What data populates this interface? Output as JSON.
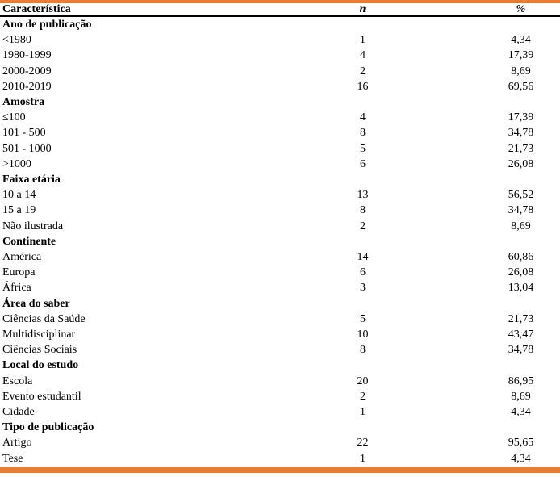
{
  "colors": {
    "accent": "#E87E35",
    "text": "#000000",
    "header_rule": "#000000"
  },
  "table": {
    "columns": [
      "Característica",
      "n",
      "%"
    ],
    "sections": [
      {
        "label": "Ano de publicação",
        "rows": [
          {
            "label": "<1980",
            "n": "1",
            "pct": "4,34"
          },
          {
            "label": "1980-1999",
            "n": "4",
            "pct": "17,39"
          },
          {
            "label": "2000-2009",
            "n": "2",
            "pct": "8,69"
          },
          {
            "label": "2010-2019",
            "n": "16",
            "pct": "69,56"
          }
        ]
      },
      {
        "label": "Amostra",
        "rows": [
          {
            "label": "≤100",
            "n": "4",
            "pct": "17,39"
          },
          {
            "label": "101 - 500",
            "n": "8",
            "pct": "34,78"
          },
          {
            "label": "501 - 1000",
            "n": "5",
            "pct": "21,73"
          },
          {
            "label": ">1000",
            "n": "6",
            "pct": "26,08"
          }
        ]
      },
      {
        "label": "Faixa etária",
        "rows": [
          {
            "label": "10 a 14",
            "n": "13",
            "pct": "56,52"
          },
          {
            "label": "15 a 19",
            "n": "8",
            "pct": "34,78"
          },
          {
            "label": "Não ilustrada",
            "n": "2",
            "pct": "8,69"
          }
        ]
      },
      {
        "label": "Continente",
        "rows": [
          {
            "label": "América",
            "n": "14",
            "pct": "60,86"
          },
          {
            "label": "Europa",
            "n": "6",
            "pct": "26,08"
          },
          {
            "label": "África",
            "n": "3",
            "pct": "13,04"
          }
        ]
      },
      {
        "label": "Área do saber",
        "rows": [
          {
            "label": "Ciências da Saúde",
            "n": "5",
            "pct": "21,73"
          },
          {
            "label": "Multidisciplinar",
            "n": "10",
            "pct": "43,47"
          },
          {
            "label": "Ciências Sociais",
            "n": "8",
            "pct": "34,78"
          }
        ]
      },
      {
        "label": "Local do estudo",
        "rows": [
          {
            "label": "Escola",
            "n": "20",
            "pct": "86,95"
          },
          {
            "label": "Evento estudantil",
            "n": "2",
            "pct": "8,69"
          },
          {
            "label": "Cidade",
            "n": "1",
            "pct": "4,34"
          }
        ]
      },
      {
        "label": "Tipo de publicação",
        "rows": [
          {
            "label": "Artigo",
            "n": "22",
            "pct": "95,65"
          },
          {
            "label": "Tese",
            "n": "1",
            "pct": "4,34"
          }
        ]
      }
    ]
  }
}
